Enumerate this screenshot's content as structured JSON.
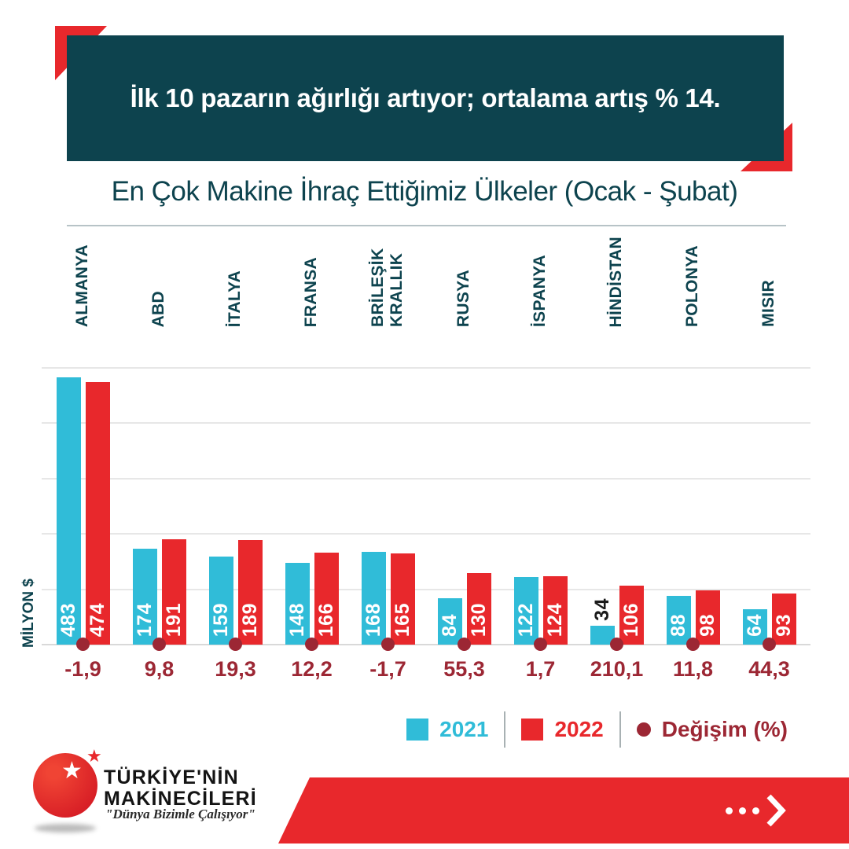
{
  "banner": {
    "title": "İlk 10 pazarın ağırlığı artıyor; ortalama artış % 14."
  },
  "chart_data": {
    "type": "bar",
    "title": "En Çok Makine İhraç Ettiğimiz Ülkeler (Ocak - Şubat)",
    "categories": [
      "ALMANYA",
      "ABD",
      "İTALYA",
      "FRANSA",
      "BRİLEŞİK KRALLIK",
      "RUSYA",
      "İSPANYA",
      "HİNDİSTAN",
      "POLONYA",
      "MISIR"
    ],
    "series": [
      {
        "name": "2021",
        "color": "#30bcd8",
        "values": [
          483,
          174,
          159,
          148,
          168,
          84,
          122,
          34,
          88,
          64
        ]
      },
      {
        "name": "2022",
        "color": "#e8282c",
        "values": [
          474,
          191,
          189,
          166,
          165,
          130,
          124,
          106,
          98,
          93
        ]
      }
    ],
    "change_series": {
      "name": "Değişim (%)",
      "color": "#9c2734",
      "values": [
        "-1,9",
        "9,8",
        "19,3",
        "12,2",
        "-1,7",
        "55,3",
        "1,7",
        "210,1",
        "11,8",
        "44,3"
      ]
    },
    "ylabel": "MİLYON $",
    "ylim": [
      0,
      500
    ],
    "grid_step": 100,
    "grid": true,
    "legend_position": "bottom-right"
  },
  "footer": {
    "brand_line1": "TÜRKİYE'NİN",
    "brand_line2": "MAKİNECİLERİ",
    "slogan": "\"Dünya Bizimle Çalışıyor\""
  },
  "colors": {
    "teal": "#0d434e",
    "cyan": "#30bcd8",
    "red": "#e8282c",
    "maroon": "#9c2734"
  }
}
